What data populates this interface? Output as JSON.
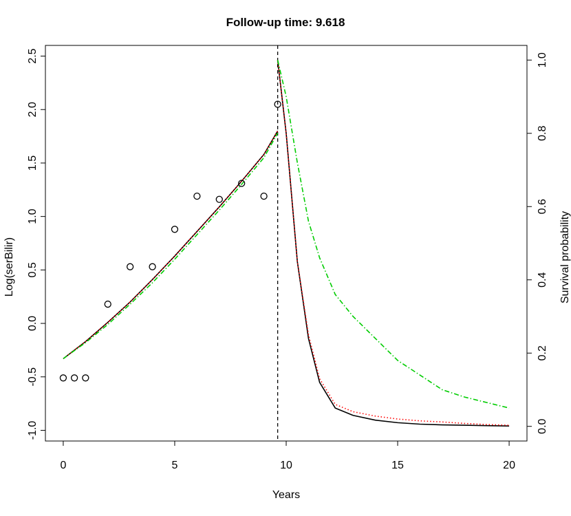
{
  "chart_data": {
    "type": "line",
    "title": "Follow-up time: 9.618",
    "xlabel": "Years",
    "ylabel_left": "Log(serBilir)",
    "ylabel_right": "Survival probability",
    "xlim": [
      -0.8,
      20.8
    ],
    "ylim_left": [
      -1.1,
      2.6
    ],
    "ylim_right": [
      -0.04,
      1.04
    ],
    "x_ticks": [
      0,
      5,
      10,
      15,
      20
    ],
    "y_left_ticks": [
      -1.0,
      -0.5,
      0.0,
      0.5,
      1.0,
      1.5,
      2.0,
      2.5
    ],
    "y_left_tick_labels": [
      "-1.0",
      "-0.5",
      "0.0",
      "0.5",
      "1.0",
      "1.5",
      "2.0",
      "2.5"
    ],
    "y_right_ticks": [
      0.0,
      0.2,
      0.4,
      0.6,
      0.8,
      1.0
    ],
    "y_right_tick_labels": [
      "0.0",
      "0.2",
      "0.4",
      "0.6",
      "0.8",
      "1.0"
    ],
    "grid": false,
    "followup_time": 9.618,
    "observations": {
      "x": [
        0,
        0.5,
        1.0,
        2.0,
        3.0,
        4.0,
        5.0,
        6.0,
        7.0,
        8.0,
        9.0,
        9.618
      ],
      "y": [
        -0.51,
        -0.51,
        -0.51,
        0.18,
        0.53,
        0.53,
        0.88,
        1.19,
        1.16,
        1.31,
        1.19,
        2.05
      ]
    },
    "longitudinal_series": [
      {
        "color": "#000000",
        "style": "solid",
        "x": [
          0,
          1,
          2,
          3,
          4,
          5,
          6,
          7,
          8,
          9,
          9.618
        ],
        "y": [
          -0.33,
          -0.17,
          0.01,
          0.2,
          0.41,
          0.63,
          0.86,
          1.09,
          1.33,
          1.58,
          1.8
        ]
      },
      {
        "color": "#ff0000",
        "style": "dotted",
        "x": [
          0,
          1,
          2,
          3,
          4,
          5,
          6,
          7,
          8,
          9,
          9.618
        ],
        "y": [
          -0.33,
          -0.17,
          0.01,
          0.2,
          0.41,
          0.63,
          0.86,
          1.09,
          1.33,
          1.58,
          1.8
        ]
      },
      {
        "color": "#00cc00",
        "style": "dashdot",
        "x": [
          0,
          1,
          2,
          3,
          4,
          5,
          6,
          7,
          8,
          9,
          9.618
        ],
        "y": [
          -0.33,
          -0.18,
          -0.01,
          0.18,
          0.38,
          0.6,
          0.83,
          1.06,
          1.3,
          1.55,
          1.78
        ]
      }
    ],
    "survival_series": [
      {
        "color": "#000000",
        "style": "solid",
        "x": [
          9.618,
          10.0,
          10.5,
          11.0,
          11.5,
          12.2,
          13.0,
          14.0,
          15.0,
          16.0,
          17.0,
          18.0,
          19.0,
          20.0
        ],
        "y": [
          1.0,
          0.8,
          0.45,
          0.24,
          0.12,
          0.05,
          0.03,
          0.017,
          0.01,
          0.006,
          0.004,
          0.003,
          0.002,
          0.001
        ]
      },
      {
        "color": "#ff0000",
        "style": "dotted",
        "x": [
          9.618,
          10.0,
          10.5,
          11.0,
          11.5,
          12.2,
          13.0,
          14.0,
          15.0,
          16.0,
          17.0,
          18.0,
          19.0,
          20.0
        ],
        "y": [
          1.0,
          0.8,
          0.45,
          0.25,
          0.13,
          0.06,
          0.04,
          0.028,
          0.02,
          0.015,
          0.012,
          0.008,
          0.005,
          0.003
        ]
      },
      {
        "color": "#00cc00",
        "style": "dashdot",
        "x": [
          9.618,
          10.0,
          10.5,
          11.0,
          11.5,
          12.2,
          13.0,
          14.0,
          15.0,
          16.0,
          17.0,
          18.0,
          19.0,
          20.0
        ],
        "y": [
          1.0,
          0.9,
          0.72,
          0.56,
          0.46,
          0.36,
          0.3,
          0.24,
          0.18,
          0.14,
          0.1,
          0.08,
          0.065,
          0.05
        ]
      }
    ]
  }
}
